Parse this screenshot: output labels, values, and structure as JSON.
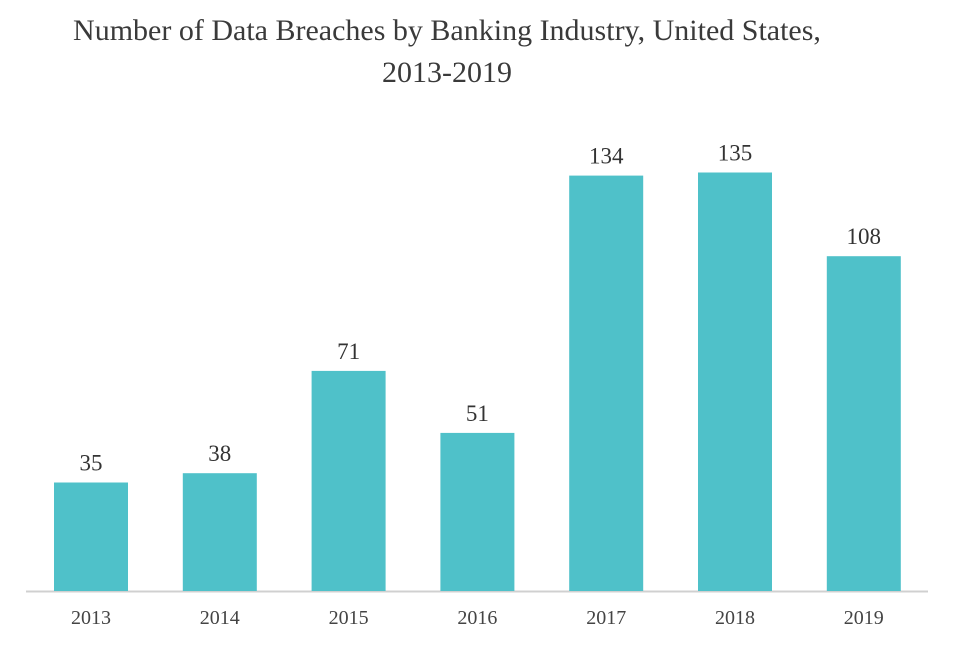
{
  "chart_data": {
    "type": "bar",
    "title": "Number of Data Breaches by Banking Industry, United States, 2013-2019",
    "title_lines": [
      "Number of Data Breaches by Banking Industry, United States,",
      "2013-2019"
    ],
    "categories": [
      "2013",
      "2014",
      "2015",
      "2016",
      "2017",
      "2018",
      "2019"
    ],
    "values": [
      35,
      38,
      71,
      51,
      134,
      135,
      108
    ],
    "xlabel": "",
    "ylabel": "",
    "ylim": [
      0,
      135
    ],
    "grid": false,
    "legend": "none",
    "bar_color": "#4fc1c9",
    "axis_color": "#d0d0d0"
  }
}
